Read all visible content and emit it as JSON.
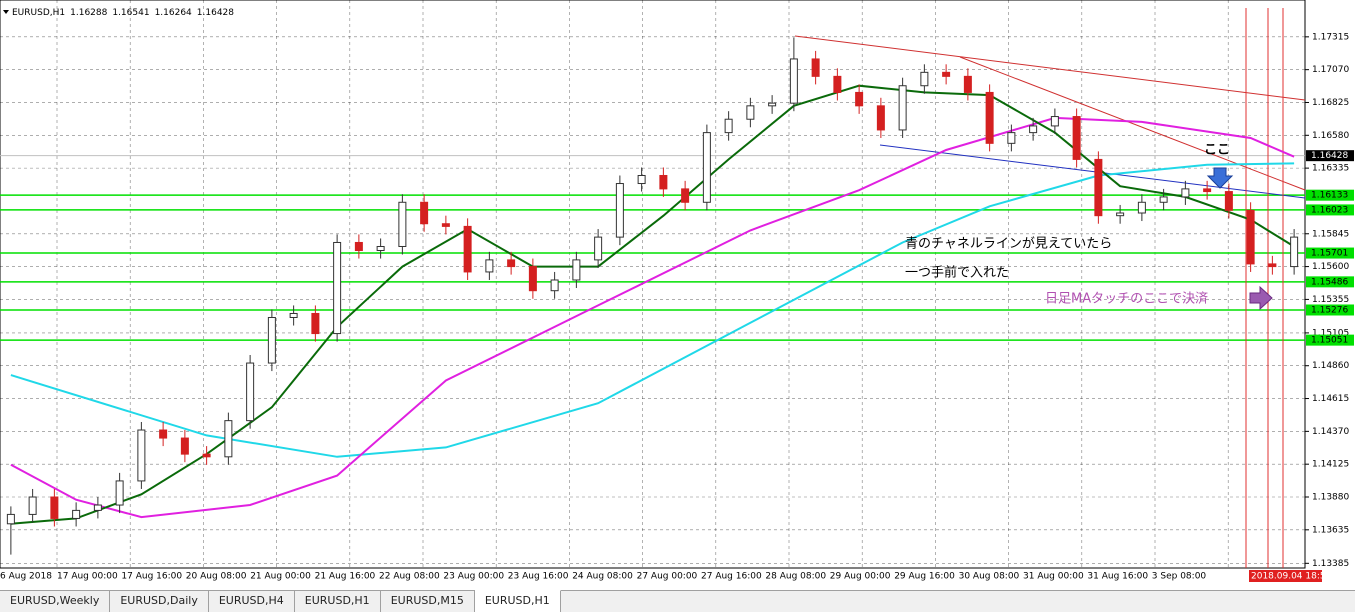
{
  "chart_data": {
    "type": "candlestick",
    "title": "EURUSD,H1",
    "header_values": [
      1.16288,
      1.16541,
      1.16264,
      1.16428
    ],
    "open": [
      1.1368,
      1.1375,
      1.1388,
      1.1372,
      1.1378,
      1.1382,
      1.14,
      1.1438,
      1.1432,
      1.142,
      1.1418,
      1.1445,
      1.1488,
      1.1522,
      1.1525,
      1.151,
      1.1578,
      1.1572,
      1.1575,
      1.1608,
      1.1592,
      1.159,
      1.1556,
      1.1565,
      1.156,
      1.1542,
      1.155,
      1.1565,
      1.1582,
      1.1622,
      1.1628,
      1.1618,
      1.1608,
      1.166,
      1.167,
      1.168,
      1.1682,
      1.1715,
      1.1702,
      1.169,
      1.168,
      1.1662,
      1.1695,
      1.1705,
      1.1702,
      1.169,
      1.1652,
      1.166,
      1.1665,
      1.1672,
      1.164,
      1.1598,
      1.16,
      1.1608,
      1.1612,
      1.1618,
      1.1616,
      1.1602,
      1.1562,
      1.156
    ],
    "high": [
      1.1381,
      1.1394,
      1.1394,
      1.1384,
      1.1388,
      1.1406,
      1.1444,
      1.1444,
      1.1438,
      1.1426,
      1.1451,
      1.1494,
      1.1528,
      1.1531,
      1.1531,
      1.1584,
      1.1584,
      1.1581,
      1.1614,
      1.1614,
      1.1598,
      1.1596,
      1.1571,
      1.1571,
      1.1566,
      1.1556,
      1.1571,
      1.1588,
      1.1628,
      1.1634,
      1.1634,
      1.1624,
      1.1666,
      1.1676,
      1.1686,
      1.1688,
      1.1731,
      1.1721,
      1.1708,
      1.1696,
      1.1686,
      1.1701,
      1.1711,
      1.1711,
      1.1708,
      1.1696,
      1.1666,
      1.1671,
      1.1678,
      1.1678,
      1.1646,
      1.1606,
      1.1614,
      1.1618,
      1.1624,
      1.1624,
      1.1622,
      1.1608,
      1.1568,
      1.1588
    ],
    "low": [
      1.1345,
      1.1369,
      1.1366,
      1.1366,
      1.1372,
      1.1376,
      1.1394,
      1.1426,
      1.1414,
      1.1412,
      1.1412,
      1.1439,
      1.1482,
      1.1516,
      1.1504,
      1.1504,
      1.1566,
      1.1566,
      1.1569,
      1.1586,
      1.1584,
      1.155,
      1.155,
      1.1554,
      1.1536,
      1.1536,
      1.1544,
      1.1559,
      1.1576,
      1.1616,
      1.1612,
      1.1602,
      1.1602,
      1.1654,
      1.1664,
      1.1674,
      1.1676,
      1.1696,
      1.1684,
      1.1674,
      1.1656,
      1.1656,
      1.1689,
      1.1696,
      1.1684,
      1.1646,
      1.1646,
      1.1654,
      1.1659,
      1.1634,
      1.1592,
      1.1592,
      1.1594,
      1.1602,
      1.1606,
      1.161,
      1.1596,
      1.1556,
      1.1554,
      1.1554
    ],
    "close": [
      1.1375,
      1.1388,
      1.1372,
      1.1378,
      1.1382,
      1.14,
      1.1438,
      1.1432,
      1.142,
      1.1418,
      1.1445,
      1.1488,
      1.1522,
      1.1525,
      1.151,
      1.1578,
      1.1572,
      1.1575,
      1.1608,
      1.1592,
      1.159,
      1.1556,
      1.1565,
      1.156,
      1.1542,
      1.155,
      1.1565,
      1.1582,
      1.1622,
      1.1628,
      1.1618,
      1.1608,
      1.166,
      1.167,
      1.168,
      1.1682,
      1.1715,
      1.1702,
      1.169,
      1.168,
      1.1662,
      1.1695,
      1.1705,
      1.1702,
      1.169,
      1.1652,
      1.166,
      1.1665,
      1.1672,
      1.164,
      1.1598,
      1.16,
      1.1608,
      1.1612,
      1.1618,
      1.1616,
      1.1602,
      1.1562,
      1.156,
      1.1582
    ],
    "up_color": "#ffffff",
    "down_color": "#d42020",
    "series": [
      {
        "color": "#20d8e8",
        "x": [
          0,
          9,
          15,
          20,
          27,
          34,
          41,
          45,
          50,
          55,
          59
        ],
        "values": [
          1.1479,
          1.1434,
          1.1418,
          1.1425,
          1.1458,
          1.1518,
          1.1578,
          1.1605,
          1.1628,
          1.1636,
          1.1637
        ]
      },
      {
        "color": "#e020e0",
        "x": [
          0,
          3,
          6,
          11,
          15,
          20,
          27,
          34,
          39,
          43,
          48,
          52,
          57,
          59
        ],
        "values": [
          1.1412,
          1.1386,
          1.1373,
          1.1382,
          1.1404,
          1.1475,
          1.1531,
          1.1587,
          1.1617,
          1.1647,
          1.1671,
          1.1668,
          1.1656,
          1.1642
        ]
      },
      {
        "color": "#0a6a0a",
        "x": [
          0,
          3,
          6,
          9,
          12,
          15,
          18,
          21,
          24,
          27,
          30,
          33,
          36,
          39,
          42,
          45,
          48,
          51,
          54,
          57,
          59
        ],
        "values": [
          1.1368,
          1.1372,
          1.139,
          1.142,
          1.1455,
          1.1515,
          1.156,
          1.1588,
          1.156,
          1.156,
          1.1598,
          1.164,
          1.168,
          1.1695,
          1.169,
          1.1688,
          1.166,
          1.162,
          1.1612,
          1.1595,
          1.1575
        ]
      }
    ],
    "ylim": [
      1.1335,
      1.1759
    ],
    "yticks": [
      1.17315,
      {
        "value": 1.1707,
        "label": "1.17070"
      },
      1.16825,
      {
        "value": 1.1658,
        "label": "1.16580"
      },
      1.16335,
      1.15845,
      {
        "value": 1.156,
        "label": "1.15600"
      },
      1.15355,
      1.15105,
      {
        "value": 1.1486,
        "label": "1.14860"
      },
      1.14615,
      {
        "value": 1.1437,
        "label": "1.14370"
      },
      1.14125,
      {
        "value": 1.1388,
        "label": "1.13880"
      },
      1.13635,
      1.13385
    ],
    "levels": [
      1.16133,
      1.16023,
      1.15701,
      1.15486,
      1.15276,
      1.15051
    ],
    "level_color": "#00e000",
    "current_price": 1.16428,
    "xtick_labels": [
      "6 Aug 2018",
      "17 Aug 00:00",
      "17 Aug 16:00",
      "20 Aug 08:00",
      "21 Aug 00:00",
      "21 Aug 16:00",
      "22 Aug 08:00",
      "23 Aug 00:00",
      "23 Aug 16:00",
      "24 Aug 08:00",
      "27 Aug 00:00",
      "27 Aug 16:00",
      "28 Aug 08:00",
      "29 Aug 00:00",
      "29 Aug 16:00",
      "30 Aug 08:00",
      "31 Aug 00:00",
      "31 Aug 16:00",
      "3 Sep 08:00"
    ],
    "cursor_time": "2018.09.04 18:50",
    "annotations": [
      {
        "text": "ここ",
        "color": "#000000"
      },
      {
        "text": "青のチャネルラインが見えていたら",
        "color": "#000000"
      },
      {
        "text": "一つ手前で入れた",
        "color": "#000000"
      },
      {
        "text": "日足MAタッチのここで決済",
        "color": "#b050b0"
      }
    ],
    "grid": true
  },
  "tabs": [
    "EURUSD,Weekly",
    "EURUSD,Daily",
    "EURUSD,H4",
    "EURUSD,H1",
    "EURUSD,M15",
    "EURUSD,H1"
  ],
  "active_tab": 5
}
